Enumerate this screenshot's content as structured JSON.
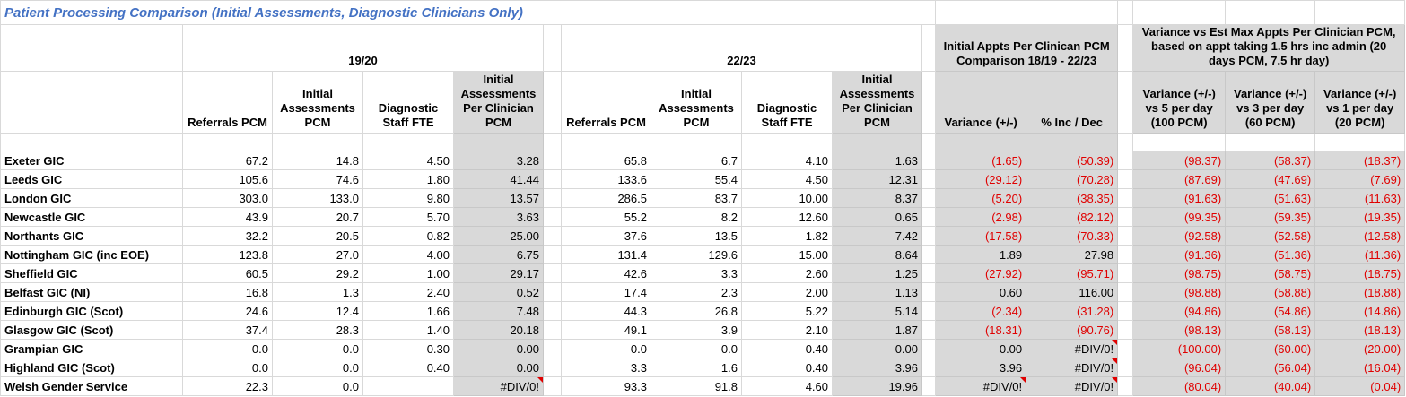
{
  "header": {
    "title": "Patient Processing Comparison (Initial Assessments, Diagnostic Clinicians Only)"
  },
  "table": {
    "group_headers": [
      "19/20",
      "22/23",
      "Initial Appts Per Clinican PCM Comparison 18/19 - 22/23",
      "Variance vs Est Max Appts Per Clinician PCM, based on appt taking 1.5 hrs inc admin (20 days PCM, 7.5 hr day)"
    ],
    "column_headers": [
      "Referrals PCM",
      "Initial Assessments PCM",
      "Diagnostic Staff FTE",
      "Initial Assessments Per Clinician PCM",
      "Referrals PCM",
      "Initial Assessments PCM",
      "Diagnostic Staff FTE",
      "Initial Assessments Per Clinician PCM",
      "Variance (+/-)",
      "% Inc / Dec",
      "Variance (+/-) vs 5 per day (100 PCM)",
      "Variance (+/-) vs 3 per day (60 PCM)",
      "Variance (+/-) vs 1 per day (20 PCM)"
    ],
    "rows": [
      [
        "Exeter GIC",
        "67.2",
        "14.8",
        "4.50",
        "3.28",
        "65.8",
        "6.7",
        "4.10",
        "1.63",
        "(1.65)",
        "(50.39)",
        "(98.37)",
        "(58.37)",
        "(18.37)"
      ],
      [
        "Leeds GIC",
        "105.6",
        "74.6",
        "1.80",
        "41.44",
        "133.6",
        "55.4",
        "4.50",
        "12.31",
        "(29.12)",
        "(70.28)",
        "(87.69)",
        "(47.69)",
        "(7.69)"
      ],
      [
        "London GIC",
        "303.0",
        "133.0",
        "9.80",
        "13.57",
        "286.5",
        "83.7",
        "10.00",
        "8.37",
        "(5.20)",
        "(38.35)",
        "(91.63)",
        "(51.63)",
        "(11.63)"
      ],
      [
        "Newcastle GIC",
        "43.9",
        "20.7",
        "5.70",
        "3.63",
        "55.2",
        "8.2",
        "12.60",
        "0.65",
        "(2.98)",
        "(82.12)",
        "(99.35)",
        "(59.35)",
        "(19.35)"
      ],
      [
        "Northants GIC",
        "32.2",
        "20.5",
        "0.82",
        "25.00",
        "37.6",
        "13.5",
        "1.82",
        "7.42",
        "(17.58)",
        "(70.33)",
        "(92.58)",
        "(52.58)",
        "(12.58)"
      ],
      [
        "Nottingham GIC (inc EOE)",
        "123.8",
        "27.0",
        "4.00",
        "6.75",
        "131.4",
        "129.6",
        "15.00",
        "8.64",
        "1.89",
        "27.98",
        "(91.36)",
        "(51.36)",
        "(11.36)"
      ],
      [
        "Sheffield GIC",
        "60.5",
        "29.2",
        "1.00",
        "29.17",
        "42.6",
        "3.3",
        "2.60",
        "1.25",
        "(27.92)",
        "(95.71)",
        "(98.75)",
        "(58.75)",
        "(18.75)"
      ],
      [
        "Belfast GIC (NI)",
        "16.8",
        "1.3",
        "2.40",
        "0.52",
        "17.4",
        "2.3",
        "2.00",
        "1.13",
        "0.60",
        "116.00",
        "(98.88)",
        "(58.88)",
        "(18.88)"
      ],
      [
        "Edinburgh GIC (Scot)",
        "24.6",
        "12.4",
        "1.66",
        "7.48",
        "44.3",
        "26.8",
        "5.22",
        "5.14",
        "(2.34)",
        "(31.28)",
        "(94.86)",
        "(54.86)",
        "(14.86)"
      ],
      [
        "Glasgow GIC (Scot)",
        "37.4",
        "28.3",
        "1.40",
        "20.18",
        "49.1",
        "3.9",
        "2.10",
        "1.87",
        "(18.31)",
        "(90.76)",
        "(98.13)",
        "(58.13)",
        "(18.13)"
      ],
      [
        "Grampian GIC",
        "0.0",
        "0.0",
        "0.30",
        "0.00",
        "0.0",
        "0.0",
        "0.40",
        "0.00",
        "0.00",
        "#DIV/0!",
        "(100.00)",
        "(60.00)",
        "(20.00)"
      ],
      [
        "Highland GIC (Scot)",
        "0.0",
        "0.0",
        "0.40",
        "0.00",
        "3.3",
        "1.6",
        "0.40",
        "3.96",
        "3.96",
        "#DIV/0!",
        "(96.04)",
        "(56.04)",
        "(16.04)"
      ],
      [
        "Welsh Gender Service",
        "22.3",
        "0.0",
        null,
        "#DIV/0!",
        "93.3",
        "91.8",
        "4.60",
        "19.96",
        "#DIV/0!",
        "#DIV/0!",
        "(80.04)",
        "(40.04)",
        "(0.04)"
      ]
    ]
  }
}
